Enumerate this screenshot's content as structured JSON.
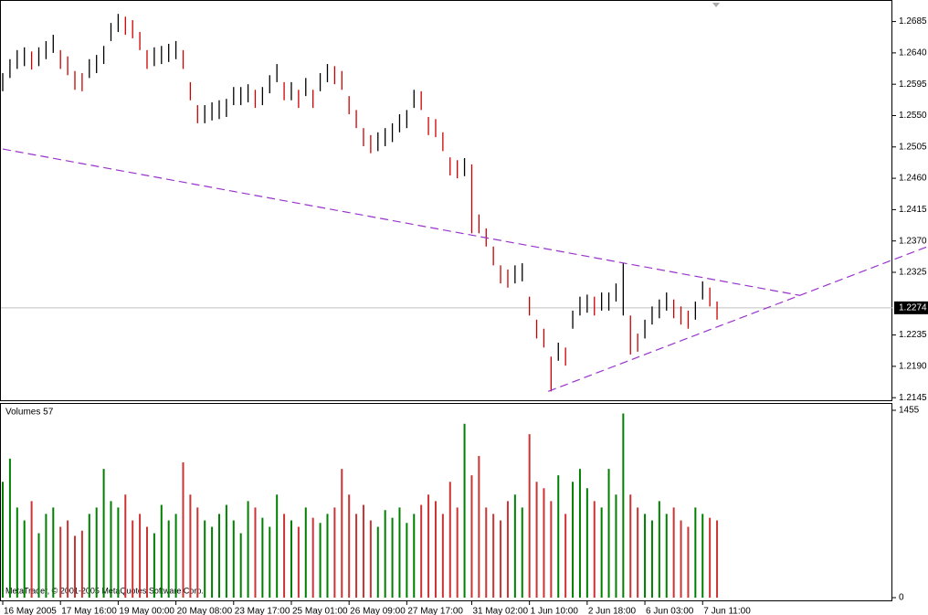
{
  "chart_data": {
    "type": "ohlc",
    "categories": [
      "16 May 2005",
      null,
      null,
      null,
      null,
      null,
      null,
      null,
      "17 May 16:00",
      null,
      null,
      null,
      null,
      null,
      null,
      null,
      "19 May 00:00",
      null,
      null,
      null,
      null,
      null,
      null,
      null,
      "20 May 08:00",
      null,
      null,
      null,
      null,
      null,
      null,
      null,
      "23 May 17:00",
      null,
      null,
      null,
      null,
      null,
      null,
      null,
      "25 May 01:00",
      null,
      null,
      null,
      null,
      null,
      null,
      null,
      "26 May 09:00",
      null,
      null,
      null,
      null,
      null,
      null,
      null,
      "27 May 17:00",
      null,
      null,
      null,
      null,
      null,
      null,
      null,
      null,
      "31 May 02:00",
      null,
      null,
      null,
      null,
      null,
      null,
      null,
      "1 Jun 10:00",
      null,
      null,
      null,
      null,
      null,
      null,
      null,
      "2 Jun 18:00",
      null,
      null,
      null,
      null,
      null,
      null,
      null,
      "6 Jun 03:00",
      null,
      null,
      null,
      null,
      null,
      null,
      null,
      "7 Jun 11:00",
      null,
      null
    ],
    "high": [
      1.2611,
      1.2631,
      1.2644,
      1.2648,
      1.2642,
      1.2648,
      1.2657,
      1.2666,
      1.2644,
      1.2635,
      1.2614,
      1.2611,
      1.2631,
      1.2637,
      1.265,
      1.2683,
      1.2696,
      1.2692,
      1.2687,
      1.267,
      1.2644,
      1.2648,
      1.265,
      1.2653,
      1.2657,
      1.2644,
      1.2598,
      1.2565,
      1.2565,
      1.2569,
      1.2572,
      1.2574,
      1.2591,
      1.2591,
      1.2595,
      1.2587,
      1.2591,
      1.2608,
      1.2624,
      1.2598,
      1.2598,
      1.2587,
      1.2604,
      1.2587,
      1.2611,
      1.2624,
      1.2621,
      1.2614,
      1.2578,
      1.2558,
      1.2532,
      1.2522,
      1.2526,
      1.2532,
      1.2539,
      1.2552,
      1.2558,
      1.2587,
      1.2585,
      1.2548,
      1.2545,
      1.2526,
      1.249,
      1.2486,
      1.2489,
      1.248,
      1.2408,
      1.2388,
      1.2362,
      1.2335,
      1.2329,
      1.2335,
      1.2338,
      1.229,
      1.2257,
      1.2244,
      1.2204,
      1.2224,
      1.2217,
      1.227,
      1.229,
      1.2293,
      1.229,
      1.2296,
      1.2296,
      1.2309,
      1.2338,
      1.2263,
      1.2237,
      1.2257,
      1.2276,
      1.2286,
      1.2296,
      1.2286,
      1.2276,
      1.227,
      1.2283,
      1.2312,
      1.2303,
      1.2283
    ],
    "low": [
      1.2585,
      1.2604,
      1.2617,
      1.2621,
      1.2616,
      1.2621,
      1.2631,
      1.264,
      1.2617,
      1.2608,
      1.2587,
      1.2585,
      1.2604,
      1.2611,
      1.2624,
      1.2657,
      1.267,
      1.2666,
      1.2661,
      1.2644,
      1.2617,
      1.2621,
      1.2624,
      1.2627,
      1.2631,
      1.2617,
      1.2572,
      1.2539,
      1.2539,
      1.2543,
      1.2545,
      1.2548,
      1.2565,
      1.2565,
      1.2569,
      1.2561,
      1.2565,
      1.2582,
      1.2598,
      1.2572,
      1.2572,
      1.2561,
      1.2578,
      1.2561,
      1.2585,
      1.2598,
      1.2595,
      1.2587,
      1.2552,
      1.2532,
      1.2506,
      1.2496,
      1.2499,
      1.2506,
      1.2512,
      1.2526,
      1.2532,
      1.2561,
      1.2558,
      1.2522,
      1.2519,
      1.2499,
      1.2464,
      1.246,
      1.2463,
      1.2381,
      1.2381,
      1.2362,
      1.2335,
      1.2309,
      1.2303,
      1.2309,
      1.2312,
      1.2263,
      1.223,
      1.2217,
      1.2154,
      1.2198,
      1.2191,
      1.2244,
      1.2263,
      1.2267,
      1.2263,
      1.227,
      1.227,
      1.2283,
      1.2263,
      1.2207,
      1.2211,
      1.223,
      1.225,
      1.2259,
      1.227,
      1.2259,
      1.225,
      1.2244,
      1.2257,
      1.2286,
      1.2276,
      1.2257
    ],
    "volume": [
      900,
      1080,
      700,
      600,
      750,
      500,
      650,
      700,
      550,
      600,
      480,
      520,
      650,
      700,
      1000,
      750,
      700,
      800,
      600,
      650,
      550,
      500,
      720,
      600,
      650,
      1050,
      800,
      700,
      600,
      550,
      650,
      720,
      600,
      500,
      750,
      700,
      620,
      550,
      800,
      650,
      600,
      550,
      700,
      620,
      580,
      650,
      700,
      1000,
      800,
      650,
      720,
      600,
      550,
      680,
      620,
      700,
      580,
      650,
      720,
      800,
      750,
      650,
      900,
      700,
      1350,
      950,
      1100,
      700,
      650,
      600,
      750,
      800,
      700,
      1270,
      900,
      850,
      750,
      950,
      650,
      900,
      1000,
      850,
      750,
      700,
      1000,
      800,
      1430,
      800,
      700,
      650,
      600,
      750,
      650,
      700,
      600,
      550,
      700,
      650,
      620,
      600
    ],
    "xlim": [
      -0.38,
      123.3
    ],
    "ylim": [
      1.214,
      1.2712
    ],
    "yticks": [
      1.2685,
      {
        "value": 1.264,
        "label": "1.2640"
      },
      1.2595,
      {
        "value": 1.255,
        "label": "1.2550"
      },
      1.2505,
      {
        "value": 1.246,
        "label": "1.2460"
      },
      1.2415,
      {
        "value": 1.237,
        "label": "1.2370"
      },
      1.2325,
      1.2235,
      {
        "value": 1.219,
        "label": "1.2190"
      },
      1.2145
    ],
    "current_price": 1.2274,
    "volume_label": "Volumes 57",
    "volume_ylim": [
      0,
      1455
    ],
    "volume_yticks": [
      1455,
      0
    ],
    "up_color": "#000000",
    "down_color": "#cc0000",
    "volume_up_color": "#008000",
    "volume_down_color": "#cc3333",
    "trendline_color": "#9933cc",
    "trendlines": [
      {
        "x": [
          0,
          110.4
        ],
        "y": [
          1.2502,
          1.2292
        ]
      },
      {
        "x": [
          75.6,
          128.2
        ],
        "y": [
          1.2154,
          1.2362
        ]
      }
    ],
    "copyright": "MetaTrader, © 2001-2005 MetaQuotes Software Corp."
  }
}
